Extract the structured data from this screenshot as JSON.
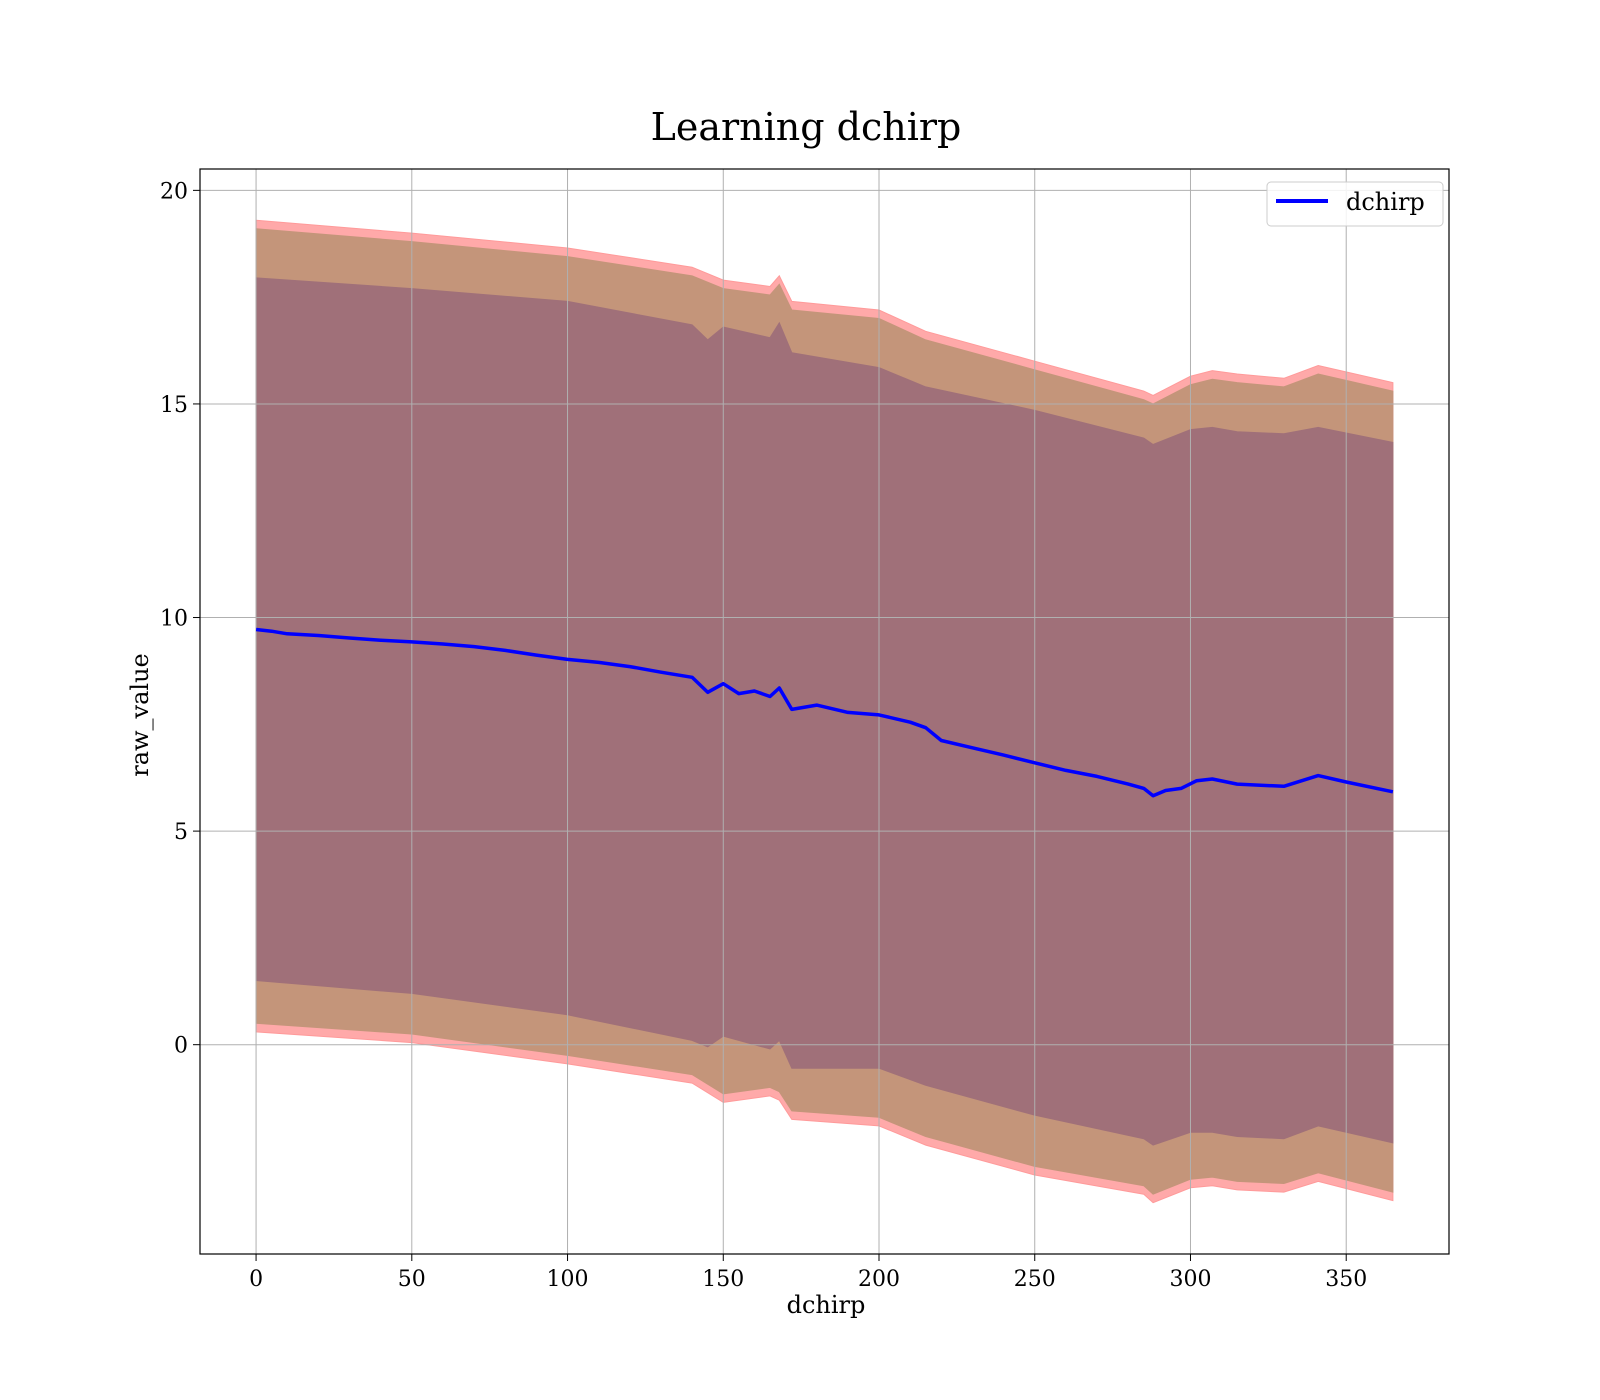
{
  "chart_data": {
    "type": "line",
    "title": "Learning dchirp",
    "xlabel": "dchirp",
    "ylabel": "raw_value",
    "xlim": [
      -18,
      383
    ],
    "ylim": [
      -4.9,
      20.5
    ],
    "x_ticks": [
      0,
      50,
      100,
      150,
      200,
      250,
      300,
      350
    ],
    "y_ticks": [
      0,
      5,
      10,
      15,
      20
    ],
    "grid": true,
    "legend": {
      "position": "top-right",
      "entries": [
        "dchirp"
      ]
    },
    "colors": {
      "line": "#0000ff",
      "band_outer": "#ff9a9a",
      "band_middle": "#c4957a",
      "band_inner": "#a07079"
    },
    "series": [
      {
        "name": "dchirp",
        "x": [
          0,
          5,
          10,
          20,
          30,
          40,
          50,
          60,
          70,
          80,
          90,
          100,
          110,
          120,
          130,
          140,
          145,
          150,
          155,
          160,
          165,
          168,
          172,
          180,
          190,
          200,
          210,
          215,
          220,
          230,
          240,
          250,
          260,
          270,
          280,
          285,
          288,
          292,
          297,
          302,
          307,
          315,
          330,
          341,
          350,
          365
        ],
        "y": [
          9.72,
          9.68,
          9.62,
          9.58,
          9.52,
          9.47,
          9.43,
          9.38,
          9.32,
          9.23,
          9.12,
          9.02,
          8.95,
          8.85,
          8.72,
          8.6,
          8.25,
          8.45,
          8.22,
          8.28,
          8.15,
          8.35,
          7.85,
          7.95,
          7.78,
          7.72,
          7.55,
          7.42,
          7.12,
          6.95,
          6.78,
          6.6,
          6.42,
          6.28,
          6.1,
          6.0,
          5.83,
          5.95,
          6.0,
          6.18,
          6.22,
          6.1,
          6.05,
          6.3,
          6.15,
          5.92
        ]
      }
    ],
    "bands": [
      {
        "level": "outer",
        "x": [
          0,
          50,
          100,
          140,
          150,
          165,
          168,
          172,
          200,
          215,
          250,
          285,
          288,
          300,
          307,
          315,
          330,
          341,
          365
        ],
        "upper": [
          19.3,
          19.0,
          18.65,
          18.2,
          17.9,
          17.75,
          18.0,
          17.4,
          17.2,
          16.7,
          16.0,
          15.3,
          15.2,
          15.65,
          15.78,
          15.7,
          15.6,
          15.9,
          15.5
        ],
        "lower": [
          0.3,
          0.05,
          -0.45,
          -0.9,
          -1.35,
          -1.2,
          -1.3,
          -1.75,
          -1.9,
          -2.35,
          -3.05,
          -3.5,
          -3.7,
          -3.35,
          -3.3,
          -3.4,
          -3.45,
          -3.2,
          -3.65
        ]
      },
      {
        "level": "middle",
        "x": [
          0,
          50,
          100,
          140,
          150,
          165,
          168,
          172,
          200,
          215,
          250,
          285,
          288,
          300,
          307,
          315,
          330,
          341,
          365
        ],
        "upper": [
          19.1,
          18.8,
          18.45,
          18.0,
          17.7,
          17.55,
          17.8,
          17.2,
          17.0,
          16.5,
          15.8,
          15.1,
          15.0,
          15.45,
          15.58,
          15.5,
          15.4,
          15.7,
          15.3
        ],
        "lower": [
          0.5,
          0.25,
          -0.25,
          -0.7,
          -1.15,
          -1.0,
          -1.1,
          -1.55,
          -1.7,
          -2.15,
          -2.85,
          -3.3,
          -3.5,
          -3.15,
          -3.1,
          -3.2,
          -3.25,
          -3.0,
          -3.45
        ]
      },
      {
        "level": "inner",
        "x": [
          0,
          50,
          100,
          140,
          145,
          150,
          165,
          168,
          172,
          200,
          215,
          250,
          285,
          288,
          300,
          307,
          315,
          330,
          341,
          365
        ],
        "upper": [
          17.95,
          17.7,
          17.4,
          16.85,
          16.5,
          16.8,
          16.55,
          16.9,
          16.2,
          15.85,
          15.4,
          14.85,
          14.2,
          14.05,
          14.4,
          14.45,
          14.35,
          14.3,
          14.45,
          14.1
        ],
        "lower": [
          1.5,
          1.2,
          0.7,
          0.1,
          -0.05,
          0.2,
          -0.1,
          0.1,
          -0.55,
          -0.55,
          -0.95,
          -1.65,
          -2.2,
          -2.35,
          -2.05,
          -2.05,
          -2.15,
          -2.2,
          -1.9,
          -2.3
        ]
      }
    ]
  }
}
